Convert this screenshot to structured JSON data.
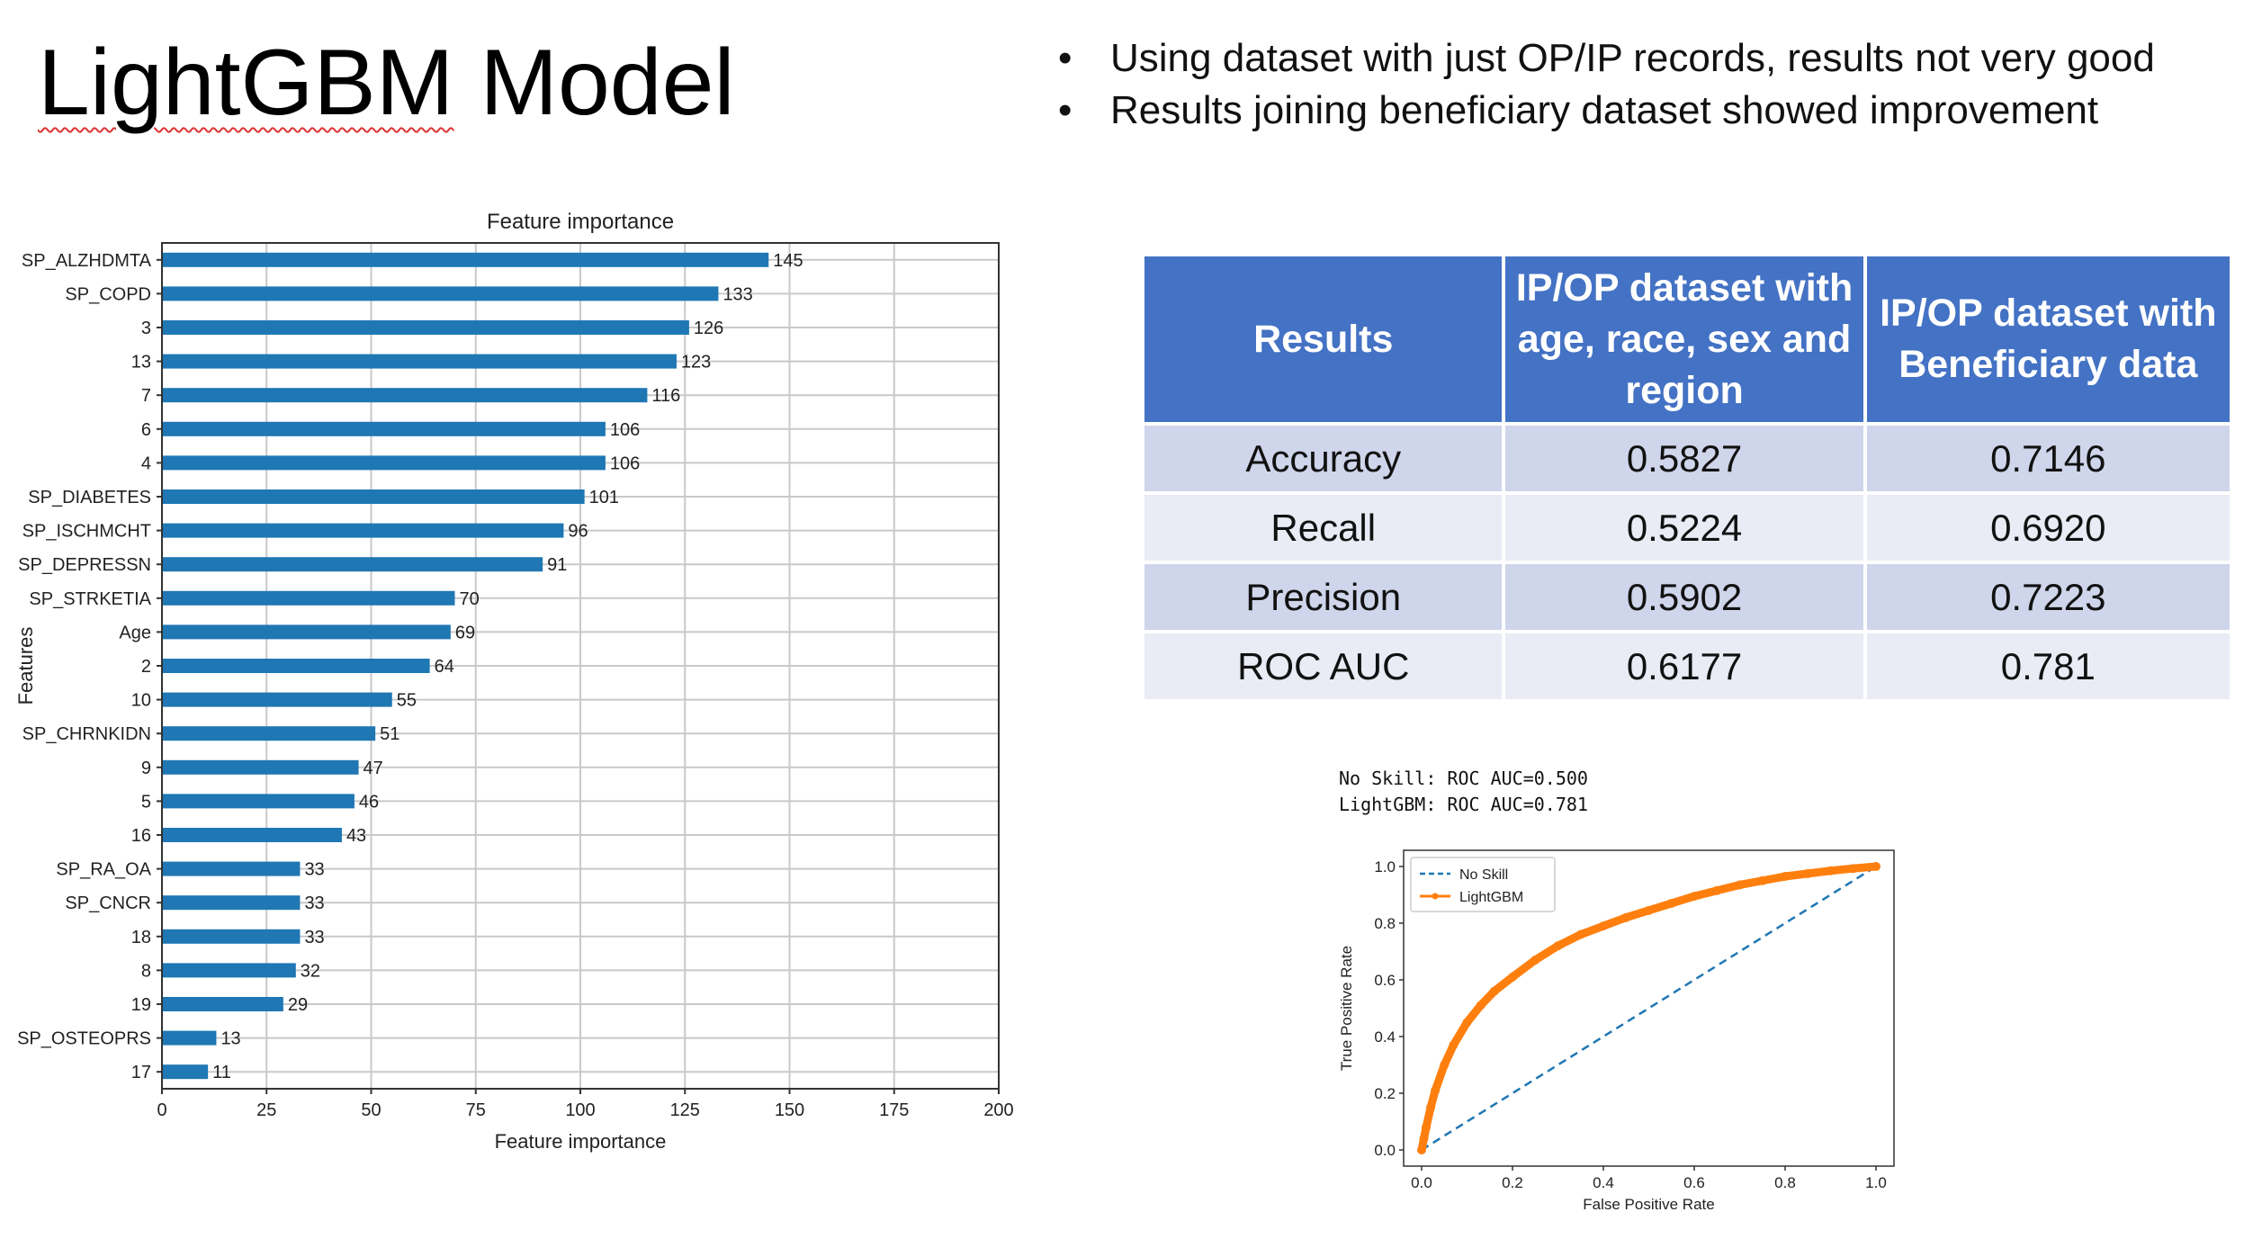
{
  "slide": {
    "title_part1": "LightGBM",
    "title_part2": " Model",
    "bullets": [
      "Using dataset with just OP/IP records, results not very good",
      "Results joining beneficiary dataset showed improvement"
    ],
    "bullet_glyph": "•"
  },
  "table": {
    "headers": [
      "Results",
      "IP/OP dataset with age, race, sex and region",
      "IP/OP dataset with Beneficiary data"
    ],
    "rows": [
      [
        "Accuracy",
        "0.5827",
        "0.7146"
      ],
      [
        "Recall",
        "0.5224",
        "0.6920"
      ],
      [
        "Precision",
        "0.5902",
        "0.7223"
      ],
      [
        "ROC AUC",
        "0.6177",
        "0.781"
      ]
    ],
    "header_color": "#4472c4",
    "row_colors": [
      "#cfd5ea",
      "#e9ebf5"
    ]
  },
  "roc_header": [
    "No Skill: ROC AUC=0.500",
    "LightGBM: ROC AUC=0.781"
  ],
  "chart_data": [
    {
      "type": "bar",
      "orientation": "horizontal",
      "title": "Feature importance",
      "xlabel": "Feature importance",
      "ylabel": "Features",
      "categories": [
        "SP_ALZHDMTA",
        "SP_COPD",
        "3",
        "13",
        "7",
        "6",
        "4",
        "SP_DIABETES",
        "SP_ISCHMCHT",
        "SP_DEPRESSN",
        "SP_STRKETIA",
        "Age",
        "2",
        "10",
        "SP_CHRNKIDN",
        "9",
        "5",
        "16",
        "SP_RA_OA",
        "SP_CNCR",
        "18",
        "8",
        "19",
        "SP_OSTEOPRS",
        "17"
      ],
      "values": [
        145,
        133,
        126,
        123,
        116,
        106,
        106,
        101,
        96,
        91,
        70,
        69,
        64,
        55,
        51,
        47,
        46,
        43,
        33,
        33,
        33,
        32,
        29,
        13,
        11
      ],
      "xlim": [
        0,
        200
      ],
      "xticks": [
        0,
        25,
        50,
        75,
        100,
        125,
        150,
        175,
        200
      ],
      "grid": true,
      "color": "#1f77b4"
    },
    {
      "type": "line",
      "xlabel": "False Positive Rate",
      "ylabel": "True Positive Rate",
      "xlim": [
        0,
        1
      ],
      "ylim": [
        0,
        1
      ],
      "xticks": [
        "0.0",
        "0.2",
        "0.4",
        "0.6",
        "0.8",
        "1.0"
      ],
      "yticks": [
        "0.0",
        "0.2",
        "0.4",
        "0.6",
        "0.8",
        "1.0"
      ],
      "legend": "top-left",
      "series": [
        {
          "name": "No Skill",
          "color": "#1f77b4",
          "style": "dashed",
          "x": [
            0,
            1
          ],
          "y": [
            0,
            1
          ]
        },
        {
          "name": "LightGBM",
          "color": "#ff7f0e",
          "style": "solid-marker",
          "x": [
            0,
            0.005,
            0.01,
            0.02,
            0.03,
            0.05,
            0.07,
            0.1,
            0.13,
            0.16,
            0.2,
            0.25,
            0.3,
            0.35,
            0.4,
            0.45,
            0.5,
            0.55,
            0.6,
            0.65,
            0.7,
            0.75,
            0.8,
            0.85,
            0.9,
            0.95,
            1.0
          ],
          "y": [
            0,
            0.04,
            0.08,
            0.15,
            0.21,
            0.3,
            0.37,
            0.45,
            0.51,
            0.56,
            0.61,
            0.67,
            0.72,
            0.76,
            0.79,
            0.82,
            0.845,
            0.87,
            0.895,
            0.915,
            0.935,
            0.95,
            0.965,
            0.975,
            0.985,
            0.993,
            1.0
          ]
        }
      ]
    }
  ]
}
